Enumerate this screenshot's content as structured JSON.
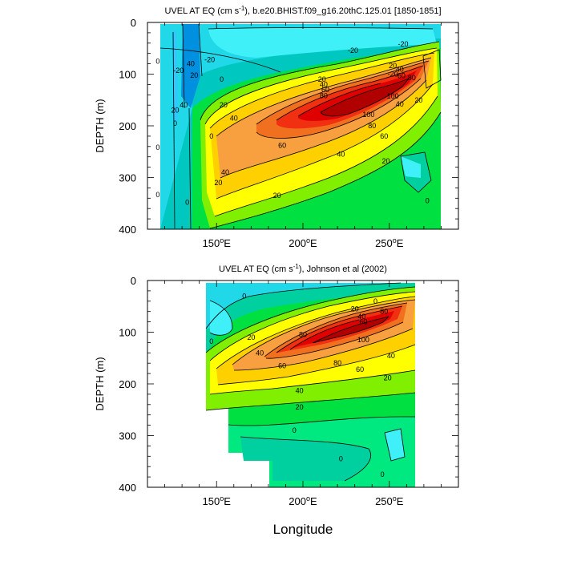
{
  "chart_data": [
    {
      "type": "contour",
      "title": "UVEL AT EQ (cm s",
      "title_sup": "-1",
      "title_rest": "), b.e20.BHIST.f09_g16.20thC.125.01 [1850-1851]",
      "ylabel": "DEPTH (m)",
      "xlabel": "",
      "xlim": [
        110,
        290
      ],
      "ylim": [
        400,
        0
      ],
      "x_ticks": [
        150,
        200,
        250
      ],
      "x_tick_labels": [
        {
          "num": "150",
          "sup": "o",
          "suf": "E"
        },
        {
          "num": "200",
          "sup": "o",
          "suf": "E"
        },
        {
          "num": "250",
          "sup": "o",
          "suf": "E"
        }
      ],
      "show_x_tick_labels": true,
      "y_ticks": [
        0,
        100,
        200,
        300,
        400
      ],
      "y_tick_labels": [
        "0",
        "100",
        "200",
        "300",
        "400"
      ],
      "levels": [
        -20,
        0,
        20,
        40,
        60,
        80,
        100
      ],
      "data_extent": {
        "lon": [
          118,
          278
        ],
        "depth": [
          0,
          400
        ]
      },
      "undercurrent_core": {
        "lon": 232,
        "depth": 140,
        "max_speed": 110
      },
      "contour_labels": [
        {
          "text": "0",
          "lon": 116,
          "depth": 75
        },
        {
          "text": "-20",
          "lon": 128,
          "depth": 93
        },
        {
          "text": "-20",
          "lon": 146,
          "depth": 72
        },
        {
          "text": "-20",
          "lon": 229,
          "depth": 54
        },
        {
          "text": "-20",
          "lon": 258,
          "depth": 42
        },
        {
          "text": "40",
          "lon": 135,
          "depth": 80
        },
        {
          "text": "0",
          "lon": 153,
          "depth": 110
        },
        {
          "text": "20",
          "lon": 137,
          "depth": 102
        },
        {
          "text": "40",
          "lon": 131,
          "depth": 160
        },
        {
          "text": "20",
          "lon": 126,
          "depth": 170
        },
        {
          "text": "0",
          "lon": 126,
          "depth": 195
        },
        {
          "text": "0",
          "lon": 116,
          "depth": 242
        },
        {
          "text": "0",
          "lon": 116,
          "depth": 333
        },
        {
          "text": "0",
          "lon": 133,
          "depth": 348
        },
        {
          "text": "0",
          "lon": 147,
          "depth": 220
        },
        {
          "text": "20",
          "lon": 154,
          "depth": 160
        },
        {
          "text": "40",
          "lon": 160,
          "depth": 185
        },
        {
          "text": "60",
          "lon": 188,
          "depth": 238
        },
        {
          "text": "40",
          "lon": 155,
          "depth": 290
        },
        {
          "text": "20",
          "lon": 151,
          "depth": 310
        },
        {
          "text": "20",
          "lon": 185,
          "depth": 335
        },
        {
          "text": "40",
          "lon": 222,
          "depth": 255
        },
        {
          "text": "20",
          "lon": 248,
          "depth": 268
        },
        {
          "text": "60",
          "lon": 247,
          "depth": 220
        },
        {
          "text": "80",
          "lon": 240,
          "depth": 200
        },
        {
          "text": "100",
          "lon": 238,
          "depth": 178
        },
        {
          "text": "40",
          "lon": 256,
          "depth": 158
        },
        {
          "text": "20",
          "lon": 267,
          "depth": 150
        },
        {
          "text": "20",
          "lon": 252,
          "depth": 84
        },
        {
          "text": "40",
          "lon": 256,
          "depth": 91
        },
        {
          "text": "60",
          "lon": 257,
          "depth": 103
        },
        {
          "text": "100",
          "lon": 252,
          "depth": 143
        },
        {
          "text": "80",
          "lon": 263,
          "depth": 107
        },
        {
          "text": "-20",
          "lon": 252,
          "depth": 100
        },
        {
          "text": "20",
          "lon": 211,
          "depth": 110
        },
        {
          "text": "40",
          "lon": 212,
          "depth": 120
        },
        {
          "text": "60",
          "lon": 213,
          "depth": 130
        },
        {
          "text": "80",
          "lon": 212,
          "depth": 142
        },
        {
          "text": "0",
          "lon": 272,
          "depth": 345
        }
      ]
    },
    {
      "type": "contour",
      "title": "UVEL AT EQ (cm s",
      "title_sup": "-1",
      "title_rest": "), Johnson et al (2002)",
      "ylabel": "DEPTH (m)",
      "xlabel": "Longitude",
      "xlim": [
        110,
        290
      ],
      "ylim": [
        400,
        0
      ],
      "x_ticks": [
        150,
        200,
        250
      ],
      "x_tick_labels": [
        {
          "num": "150",
          "sup": "o",
          "suf": "E"
        },
        {
          "num": "200",
          "sup": "o",
          "suf": "E"
        },
        {
          "num": "250",
          "sup": "o",
          "suf": "E"
        }
      ],
      "show_x_tick_labels": true,
      "y_ticks": [
        0,
        100,
        200,
        300,
        400
      ],
      "y_tick_labels": [
        "0",
        "100",
        "200",
        "300",
        "400"
      ],
      "levels": [
        -20,
        0,
        20,
        40,
        60,
        80,
        100
      ],
      "data_extent": {
        "lon": [
          143,
          265
        ],
        "depth": [
          5,
          400
        ]
      },
      "undercurrent_core": {
        "lon": 233,
        "depth": 115,
        "max_speed": 105
      },
      "contour_labels": [
        {
          "text": "0",
          "lon": 166,
          "depth": 30
        },
        {
          "text": "20",
          "lon": 170,
          "depth": 110
        },
        {
          "text": "40",
          "lon": 175,
          "depth": 140
        },
        {
          "text": "60",
          "lon": 188,
          "depth": 165
        },
        {
          "text": "0",
          "lon": 147,
          "depth": 118
        },
        {
          "text": "0",
          "lon": 242,
          "depth": 40
        },
        {
          "text": "20",
          "lon": 230,
          "depth": 55
        },
        {
          "text": "40",
          "lon": 234,
          "depth": 70
        },
        {
          "text": "60",
          "lon": 235,
          "depth": 80
        },
        {
          "text": "80",
          "lon": 200,
          "depth": 105
        },
        {
          "text": "100",
          "lon": 235,
          "depth": 115
        },
        {
          "text": "80",
          "lon": 247,
          "depth": 60
        },
        {
          "text": "80",
          "lon": 220,
          "depth": 160
        },
        {
          "text": "60",
          "lon": 233,
          "depth": 172
        },
        {
          "text": "40",
          "lon": 251,
          "depth": 146
        },
        {
          "text": "20",
          "lon": 249,
          "depth": 188
        },
        {
          "text": "40",
          "lon": 198,
          "depth": 213
        },
        {
          "text": "20",
          "lon": 198,
          "depth": 245
        },
        {
          "text": "0",
          "lon": 195,
          "depth": 290
        },
        {
          "text": "0",
          "lon": 222,
          "depth": 345
        },
        {
          "text": "0",
          "lon": 246,
          "depth": 375
        }
      ]
    }
  ]
}
